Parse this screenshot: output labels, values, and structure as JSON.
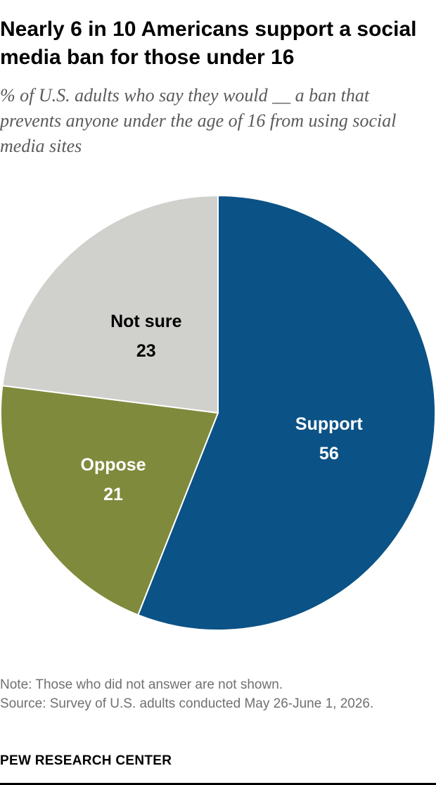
{
  "header": {
    "title": "Nearly 6 in 10 Americans support a social media ban for those under 16",
    "subtitle": "% of U.S. adults who say they would __ a ban that prevents anyone under the age of 16 from using social media sites"
  },
  "chart_data": {
    "type": "pie",
    "slices": [
      {
        "label": "Support",
        "value": 56,
        "color": "#0b5286",
        "text_color": "#ffffff"
      },
      {
        "label": "Oppose",
        "value": 21,
        "color": "#808a3c",
        "text_color": "#ffffff"
      },
      {
        "label": "Not sure",
        "value": 23,
        "color": "#d0d0cc",
        "text_color": "#000000"
      }
    ]
  },
  "footer": {
    "note": "Note: Those who did not answer are not shown.",
    "source": "Source: Survey of U.S. adults conducted May 26-June 1, 2026.",
    "brand": "PEW RESEARCH CENTER"
  }
}
